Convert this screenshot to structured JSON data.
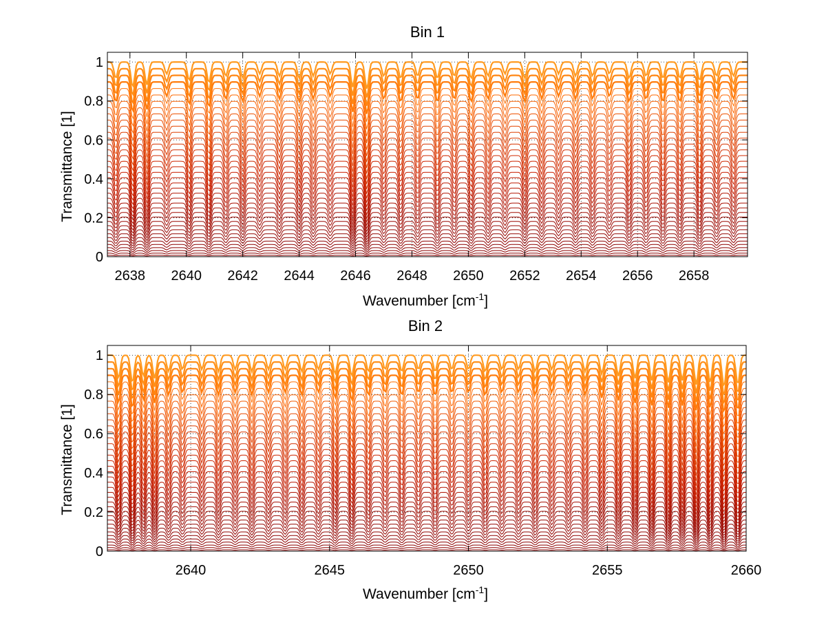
{
  "chart_data": [
    {
      "type": "line",
      "title": "Bin 1",
      "xlabel": "Wavenumber [cm",
      "xlabel_sup": "-1",
      "xlabel_end": "]",
      "ylabel": "Transmittance [1]",
      "xlim": [
        2637.2,
        2659.9
      ],
      "ylim": [
        0,
        1.05
      ],
      "xticks": [
        2638,
        2640,
        2642,
        2644,
        2646,
        2648,
        2650,
        2652,
        2654,
        2656,
        2658
      ],
      "xtick_labels": [
        "2638",
        "2640",
        "2642",
        "2644",
        "2646",
        "2648",
        "2650",
        "2652",
        "2654",
        "2656",
        "2658"
      ],
      "yticks": [
        0,
        0.2,
        0.4,
        0.6,
        0.8,
        1
      ],
      "ytick_labels": [
        "0",
        "0.2",
        "0.4",
        "0.6",
        "0.8",
        "1"
      ],
      "grid": true,
      "series_count": 40,
      "series_colors": [
        "#8b0000",
        "#c81e00",
        "#e04000",
        "#ff6a00",
        "#ff9a20"
      ],
      "absorption_lines": [
        2637.5,
        2638.1,
        2638.6,
        2639.3,
        2640.1,
        2640.8,
        2641.4,
        2642.0,
        2642.6,
        2643.3,
        2644.0,
        2644.5,
        2645.1,
        2645.9,
        2646.4,
        2647.0,
        2647.6,
        2648.2,
        2648.9,
        2649.5,
        2650.1,
        2650.7,
        2651.3,
        2652.0,
        2652.6,
        2653.2,
        2653.8,
        2654.4,
        2655.0,
        2655.7,
        2656.3,
        2656.9,
        2657.5,
        2658.2,
        2658.8,
        2659.4
      ],
      "absorption_depths": [
        0.35,
        0.55,
        0.5,
        0.25,
        0.4,
        0.45,
        0.3,
        0.35,
        0.25,
        0.3,
        0.35,
        0.3,
        0.25,
        0.55,
        0.6,
        0.3,
        0.35,
        0.3,
        0.35,
        0.3,
        0.35,
        0.3,
        0.25,
        0.35,
        0.3,
        0.25,
        0.3,
        0.3,
        0.25,
        0.35,
        0.3,
        0.35,
        0.35,
        0.4,
        0.3,
        0.3
      ]
    },
    {
      "type": "line",
      "title": "Bin 2",
      "xlabel": "Wavenumber [cm",
      "xlabel_sup": "-1",
      "xlabel_end": "]",
      "ylabel": "Transmittance [1]",
      "xlim": [
        2637.0,
        2660.0
      ],
      "ylim": [
        0,
        1.05
      ],
      "xticks": [
        2640,
        2645,
        2650,
        2655,
        2660
      ],
      "xtick_labels": [
        "2640",
        "2645",
        "2650",
        "2655",
        "2660"
      ],
      "yticks": [
        0,
        0.2,
        0.4,
        0.6,
        0.8,
        1
      ],
      "ytick_labels": [
        "0",
        "0.2",
        "0.4",
        "0.6",
        "0.8",
        "1"
      ],
      "grid": true,
      "series_count": 40,
      "series_colors": [
        "#8b0000",
        "#c81e00",
        "#e04000",
        "#ff6a00",
        "#ff9a20"
      ],
      "absorption_lines": [
        2637.4,
        2637.9,
        2638.3,
        2638.7,
        2639.2,
        2639.7,
        2640.4,
        2641.0,
        2641.6,
        2642.2,
        2642.8,
        2643.4,
        2644.0,
        2644.6,
        2645.2,
        2645.8,
        2646.4,
        2647.0,
        2647.6,
        2648.2,
        2648.8,
        2649.4,
        2650.0,
        2650.6,
        2651.2,
        2651.8,
        2652.4,
        2653.0,
        2653.6,
        2654.2,
        2654.8,
        2655.4,
        2656.0,
        2656.6,
        2657.2,
        2657.7,
        2658.2,
        2658.7,
        2659.2,
        2659.7
      ],
      "absorption_depths": [
        0.5,
        0.6,
        0.45,
        0.5,
        0.35,
        0.3,
        0.3,
        0.35,
        0.3,
        0.35,
        0.3,
        0.3,
        0.35,
        0.3,
        0.4,
        0.45,
        0.35,
        0.3,
        0.35,
        0.3,
        0.35,
        0.3,
        0.3,
        0.35,
        0.3,
        0.3,
        0.35,
        0.3,
        0.3,
        0.35,
        0.4,
        0.45,
        0.5,
        0.55,
        0.6,
        0.55,
        0.65,
        0.6,
        0.7,
        0.65
      ]
    }
  ]
}
